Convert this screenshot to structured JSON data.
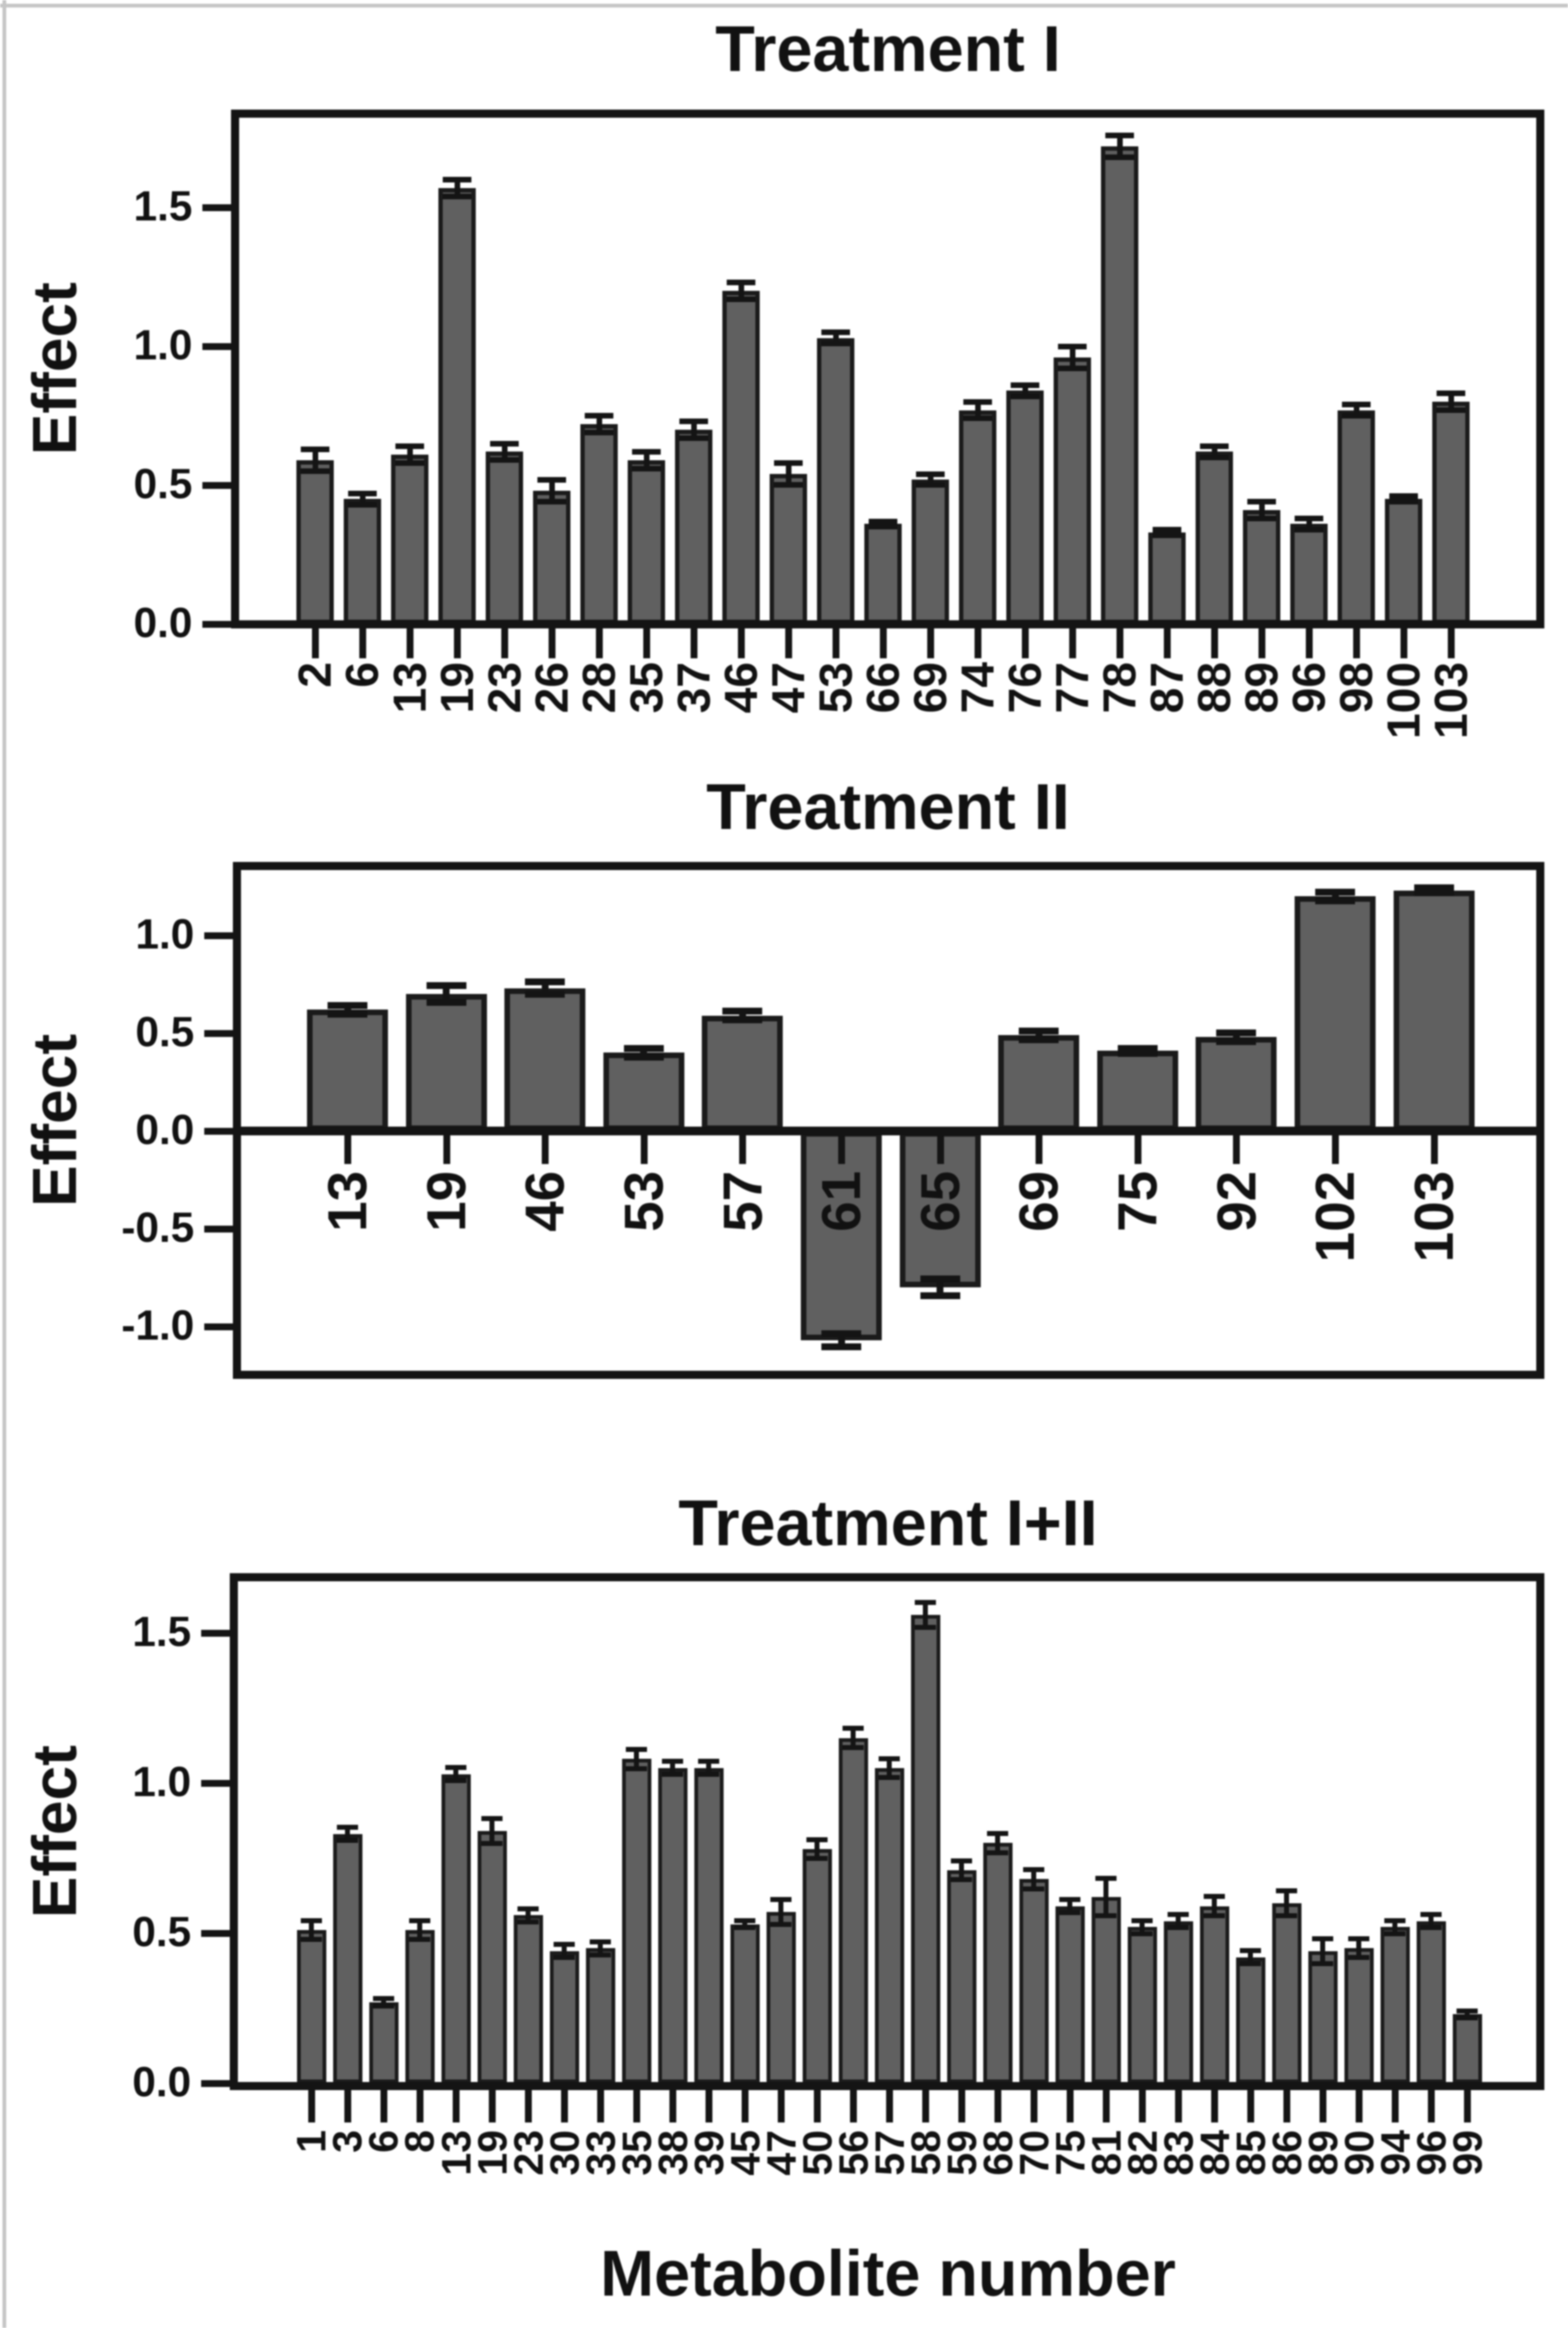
{
  "figure": {
    "xlabel": "Metabolite number",
    "ylabel": "Effect",
    "background": "#ffffff",
    "bar_color": "#606060",
    "bar_edge_color": "#1a1a1a",
    "axis_color": "#141414",
    "scan_edge_color": "#c6c6c6"
  },
  "chart_data": [
    {
      "type": "bar",
      "title": "Treatment I",
      "ylabel": "Effect",
      "xlabel": "",
      "grid": false,
      "legend": null,
      "ylim": [
        0,
        1.8
      ],
      "yticks": [
        {
          "label": "1.5",
          "value": 1.5
        },
        {
          "label": "1.0",
          "value": 1.0
        },
        {
          "label": "0.5",
          "value": 0.5
        },
        {
          "label": "0.0",
          "value": 0.0
        }
      ],
      "categories": [
        "2",
        "6",
        "13",
        "19",
        "23",
        "26",
        "28",
        "35",
        "37",
        "46",
        "47",
        "53",
        "66",
        "69",
        "74",
        "76",
        "77",
        "78",
        "87",
        "88",
        "89",
        "96",
        "98",
        "100",
        "103"
      ],
      "values": [
        0.59,
        0.45,
        0.61,
        1.57,
        0.62,
        0.48,
        0.72,
        0.59,
        0.7,
        1.2,
        0.54,
        1.03,
        0.36,
        0.52,
        0.77,
        0.84,
        0.96,
        1.72,
        0.33,
        0.62,
        0.41,
        0.36,
        0.77,
        0.45,
        0.8
      ],
      "errors": [
        0.05,
        0.03,
        0.04,
        0.04,
        0.04,
        0.05,
        0.04,
        0.04,
        0.04,
        0.04,
        0.05,
        0.03,
        0.02,
        0.03,
        0.04,
        0.03,
        0.05,
        0.05,
        0.02,
        0.03,
        0.04,
        0.03,
        0.03,
        0.02,
        0.04
      ]
    },
    {
      "type": "bar",
      "title": "Treatment II",
      "ylabel": "Effect",
      "xlabel": "",
      "grid": false,
      "legend": null,
      "ylim": [
        -1.25,
        1.35
      ],
      "yticks": [
        {
          "label": "1.0",
          "value": 1.0
        },
        {
          "label": "0.5",
          "value": 0.5
        },
        {
          "label": "0.0",
          "value": 0.0
        },
        {
          "label": "-0.5",
          "value": -0.5
        },
        {
          "label": "-1.0",
          "value": -1.0
        }
      ],
      "categories": [
        "13",
        "19",
        "46",
        "53",
        "57",
        "61",
        "65",
        "69",
        "75",
        "92",
        "102",
        "103"
      ],
      "values": [
        0.62,
        0.7,
        0.73,
        0.4,
        0.59,
        -1.07,
        -0.8,
        0.49,
        0.41,
        0.48,
        1.2,
        1.23
      ],
      "errors": [
        0.04,
        0.06,
        0.05,
        0.04,
        0.04,
        0.05,
        0.06,
        0.04,
        0.03,
        0.04,
        0.04,
        0.03
      ]
    },
    {
      "type": "bar",
      "title": "Treatment I+II",
      "ylabel": "Effect",
      "xlabel": "Metabolite number",
      "grid": false,
      "legend": null,
      "ylim": [
        0,
        1.7
      ],
      "yticks": [
        {
          "label": "1.5",
          "value": 1.5
        },
        {
          "label": "1.0",
          "value": 1.0
        },
        {
          "label": "0.5",
          "value": 0.5
        },
        {
          "label": "0.0",
          "value": 0.0
        }
      ],
      "categories": [
        "1",
        "3",
        "6",
        "8",
        "13",
        "19",
        "23",
        "30",
        "33",
        "35",
        "38",
        "39",
        "45",
        "47",
        "50",
        "56",
        "57",
        "58",
        "59",
        "68",
        "70",
        "75",
        "81",
        "82",
        "83",
        "84",
        "85",
        "86",
        "89",
        "90",
        "94",
        "96",
        "99"
      ],
      "values": [
        0.51,
        0.83,
        0.27,
        0.51,
        1.03,
        0.84,
        0.56,
        0.44,
        0.45,
        1.08,
        1.05,
        1.05,
        0.53,
        0.57,
        0.78,
        1.15,
        1.05,
        1.56,
        0.71,
        0.8,
        0.68,
        0.59,
        0.62,
        0.52,
        0.54,
        0.59,
        0.42,
        0.6,
        0.44,
        0.45,
        0.52,
        0.54,
        0.23
      ],
      "errors": [
        0.04,
        0.03,
        0.02,
        0.04,
        0.03,
        0.05,
        0.03,
        0.03,
        0.03,
        0.04,
        0.03,
        0.03,
        0.02,
        0.05,
        0.04,
        0.04,
        0.04,
        0.05,
        0.04,
        0.04,
        0.04,
        0.03,
        0.07,
        0.03,
        0.03,
        0.04,
        0.03,
        0.05,
        0.05,
        0.04,
        0.03,
        0.03,
        0.02
      ]
    }
  ]
}
